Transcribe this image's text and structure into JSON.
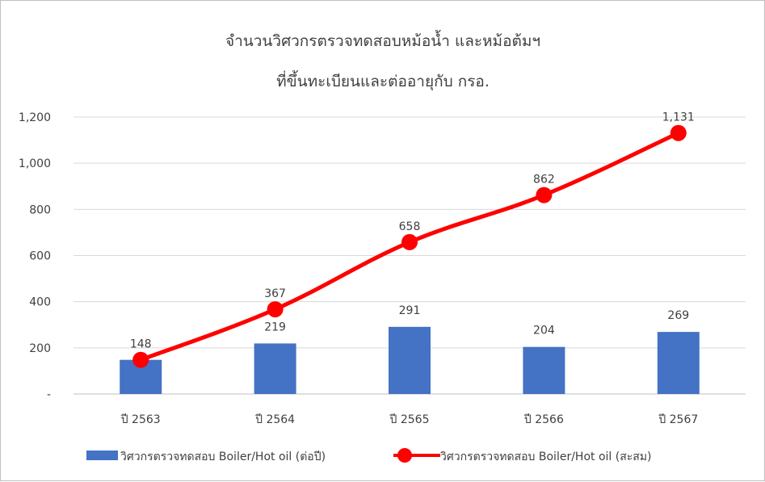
{
  "chart_data": {
    "type": "bar+line",
    "title": [
      "จำนวนวิศวกรตรวจทดสอบหม้อน้ำ และหม้อต้มฯ",
      "ที่ขึ้นทะเบียนและต่ออายุกับ กรอ."
    ],
    "categories": [
      "ปี 2563",
      "ปี 2564",
      "ปี 2565",
      "ปี 2566",
      "ปี 2567"
    ],
    "series": [
      {
        "name": "วิศวกรตรวจทดสอบ Boiler/Hot oil (ต่อปี)",
        "type": "bar",
        "color": "#4472c4",
        "values": [
          148,
          219,
          291,
          204,
          269
        ]
      },
      {
        "name": "วิศวกรตรวจทดสอบ Boiler/Hot oil (สะสม)",
        "type": "line",
        "color": "#ff0000",
        "values": [
          148,
          367,
          658,
          862,
          1131
        ]
      }
    ],
    "ylim": [
      0,
      1200
    ],
    "yticks": [
      0,
      200,
      400,
      600,
      800,
      1000,
      1200
    ],
    "ytick_labels": [
      "-",
      "200",
      "400",
      "600",
      "800",
      "1,000",
      "1,200"
    ],
    "bar_labels": [
      "",
      "219",
      "291",
      "204",
      "269"
    ],
    "line_labels": [
      "148",
      "367",
      "658",
      "862",
      "1,131"
    ],
    "grid": true,
    "legend": "bottom"
  }
}
